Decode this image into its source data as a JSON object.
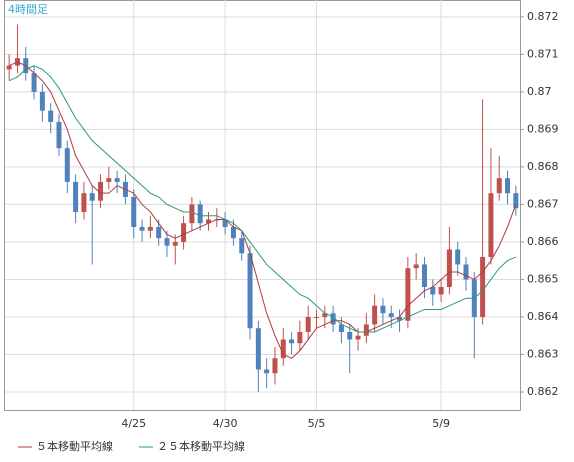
{
  "chart_data": {
    "type": "candlestick",
    "timeframe_label": "4時間足",
    "categories": [
      null,
      null,
      null,
      null,
      null,
      null,
      null,
      null,
      null,
      null,
      null,
      null,
      null,
      null,
      null,
      "4/25",
      null,
      null,
      null,
      null,
      null,
      null,
      null,
      null,
      null,
      null,
      "4/30",
      null,
      null,
      null,
      null,
      null,
      null,
      null,
      null,
      null,
      null,
      "5/5",
      null,
      null,
      null,
      null,
      null,
      null,
      null,
      null,
      null,
      null,
      null,
      null,
      null,
      null,
      "5/9",
      null,
      null,
      null,
      null,
      null,
      null,
      null,
      null,
      null
    ],
    "open": [
      0.8706,
      0.8707,
      0.8709,
      0.8705,
      0.87,
      0.8695,
      0.8692,
      0.8685,
      0.8676,
      0.8668,
      0.8673,
      0.8671,
      0.8676,
      0.8677,
      0.8676,
      0.8672,
      0.8664,
      0.8663,
      0.8664,
      0.8661,
      0.8659,
      0.866,
      0.8665,
      0.867,
      0.8665,
      0.8666,
      0.8666,
      0.8664,
      0.8661,
      0.8657,
      0.8637,
      0.8626,
      0.8625,
      0.8629,
      0.8634,
      0.8633,
      0.8636,
      0.864,
      0.864,
      0.8641,
      0.8638,
      0.8636,
      0.8634,
      0.8635,
      0.8638,
      0.8643,
      0.8641,
      0.864,
      0.8639,
      0.8653,
      0.8654,
      0.8648,
      0.8646,
      0.8648,
      0.8658,
      0.8654,
      0.865,
      0.864,
      0.8656,
      0.8673,
      0.8677,
      0.8673
    ],
    "high": [
      0.871,
      0.8718,
      0.8712,
      0.8707,
      0.8702,
      0.8697,
      0.8694,
      0.8687,
      0.8678,
      0.8676,
      0.8675,
      0.8678,
      0.868,
      0.8679,
      0.8678,
      0.8674,
      0.8666,
      0.8667,
      0.8666,
      0.8663,
      0.8662,
      0.8667,
      0.8672,
      0.8671,
      0.8668,
      0.8669,
      0.8668,
      0.8666,
      0.8663,
      0.8659,
      0.8639,
      0.8629,
      0.8632,
      0.8637,
      0.8636,
      0.8639,
      0.8643,
      0.8642,
      0.8643,
      0.8643,
      0.864,
      0.8638,
      0.8637,
      0.8641,
      0.8646,
      0.8645,
      0.8643,
      0.8642,
      0.8656,
      0.8657,
      0.8656,
      0.865,
      0.865,
      0.8664,
      0.866,
      0.8656,
      0.8652,
      0.8698,
      0.8685,
      0.8683,
      0.8679,
      0.8675
    ],
    "low": [
      0.8703,
      0.8705,
      0.8703,
      0.8698,
      0.8692,
      0.8689,
      0.8683,
      0.8673,
      0.8665,
      0.8666,
      0.8654,
      0.8669,
      0.8674,
      0.8673,
      0.867,
      0.8661,
      0.866,
      0.8661,
      0.8659,
      0.8656,
      0.8654,
      0.8658,
      0.8663,
      0.8663,
      0.8663,
      0.8664,
      0.8662,
      0.8659,
      0.8655,
      0.8634,
      0.862,
      0.8621,
      0.8622,
      0.8627,
      0.863,
      0.8631,
      0.8634,
      0.8637,
      0.8637,
      0.8636,
      0.8633,
      0.8625,
      0.8631,
      0.8633,
      0.8636,
      0.8638,
      0.8637,
      0.8636,
      0.8637,
      0.865,
      0.8645,
      0.8643,
      0.8644,
      0.8646,
      0.8651,
      0.8647,
      0.8629,
      0.8638,
      0.8654,
      0.8671,
      0.867,
      0.8667
    ],
    "close": [
      0.8707,
      0.8709,
      0.8705,
      0.87,
      0.8695,
      0.8692,
      0.8685,
      0.8676,
      0.8668,
      0.8673,
      0.8671,
      0.8676,
      0.8677,
      0.8676,
      0.8672,
      0.8664,
      0.8663,
      0.8664,
      0.8661,
      0.8659,
      0.866,
      0.8665,
      0.867,
      0.8665,
      0.8666,
      0.8666,
      0.8664,
      0.8661,
      0.8657,
      0.8637,
      0.8626,
      0.8625,
      0.8629,
      0.8634,
      0.8633,
      0.8636,
      0.864,
      0.864,
      0.8641,
      0.8638,
      0.8636,
      0.8634,
      0.8635,
      0.8638,
      0.8643,
      0.8641,
      0.864,
      0.8639,
      0.8653,
      0.8654,
      0.8648,
      0.8646,
      0.8648,
      0.8658,
      0.8654,
      0.865,
      0.864,
      0.8656,
      0.8673,
      0.8677,
      0.8673,
      0.8669
    ],
    "up_color": "#c0504d",
    "down_color": "#4f81bd",
    "lines": [
      {
        "name": "５本移動平均線",
        "color": "#b03a3a",
        "values": [
          0.8707,
          0.8708,
          0.8707,
          0.8705,
          0.8703,
          0.87,
          0.8695,
          0.869,
          0.8683,
          0.8679,
          0.8675,
          0.8673,
          0.8673,
          0.8675,
          0.8674,
          0.8673,
          0.867,
          0.8668,
          0.8665,
          0.8662,
          0.8661,
          0.8662,
          0.8663,
          0.8664,
          0.8665,
          0.8666,
          0.8666,
          0.8664,
          0.8663,
          0.8657,
          0.8649,
          0.8641,
          0.8635,
          0.863,
          0.8629,
          0.8631,
          0.8634,
          0.8637,
          0.8638,
          0.8639,
          0.8639,
          0.8638,
          0.8636,
          0.8636,
          0.8637,
          0.8638,
          0.8639,
          0.864,
          0.8643,
          0.8645,
          0.8647,
          0.8648,
          0.865,
          0.8652,
          0.8652,
          0.8651,
          0.865,
          0.8652,
          0.8655,
          0.8659,
          0.8664,
          0.867
        ]
      },
      {
        "name": "２５本移動平均線",
        "color": "#2b9a76",
        "values": [
          0.8703,
          0.8704,
          0.8706,
          0.8707,
          0.8706,
          0.8704,
          0.8701,
          0.8697,
          0.8693,
          0.869,
          0.8687,
          0.8685,
          0.8683,
          0.8681,
          0.8679,
          0.8677,
          0.8675,
          0.8673,
          0.8672,
          0.867,
          0.8669,
          0.8668,
          0.8668,
          0.8667,
          0.8667,
          0.8667,
          0.8666,
          0.8665,
          0.8663,
          0.866,
          0.8657,
          0.8654,
          0.8652,
          0.865,
          0.8648,
          0.8646,
          0.8645,
          0.8643,
          0.8641,
          0.864,
          0.8638,
          0.8637,
          0.8636,
          0.8636,
          0.8636,
          0.8637,
          0.8638,
          0.8639,
          0.864,
          0.8641,
          0.8642,
          0.8642,
          0.8642,
          0.8643,
          0.8644,
          0.8645,
          0.8645,
          0.8647,
          0.865,
          0.8653,
          0.8655,
          0.8656
        ]
      }
    ],
    "ylim": [
      0.86152,
      0.87245
    ],
    "yticks": [
      0.862,
      0.863,
      0.864,
      0.865,
      0.866,
      0.867,
      0.868,
      0.869,
      0.87,
      0.871,
      0.872
    ],
    "grid": true
  }
}
